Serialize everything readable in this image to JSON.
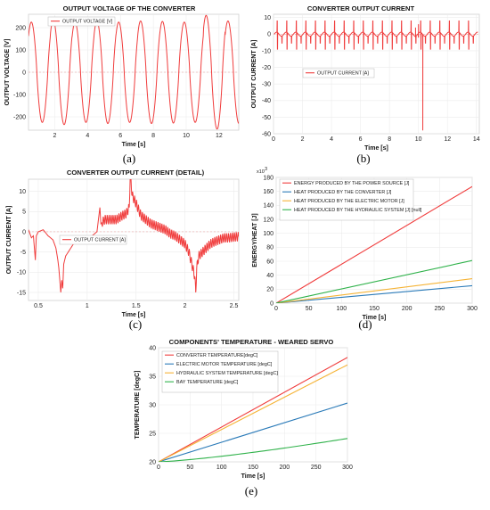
{
  "chart_data": [
    {
      "id": "a",
      "type": "line",
      "letter": "(a)",
      "title": "OUTPUT VOLTAGE OF THE CONVERTER",
      "xlabel": "Time [s]",
      "ylabel": "OUTPUT VOLTAGE [V]",
      "xlim": [
        0.4,
        13.2
      ],
      "ylim": [
        -260,
        260
      ],
      "xticks": [
        2,
        4,
        6,
        8,
        10,
        12
      ],
      "yticks": [
        -200,
        -100,
        0,
        100,
        200
      ],
      "legend_position": "top-left",
      "series": [
        {
          "name": "OUTPUT VOLTAGE [V]",
          "color": "#f03c3c",
          "waveform": {
            "kind": "sine",
            "period": 1.33,
            "amplitude": 225,
            "x0": 0.4,
            "x1": 13.2,
            "phase": 0.75
          },
          "peaks": [
            225,
            235,
            225,
            230,
            225,
            230,
            228,
            225,
            255,
            230
          ]
        }
      ]
    },
    {
      "id": "b",
      "type": "line",
      "letter": "(b)",
      "title": "CONVERTER OUTPUT CURRENT",
      "xlabel": "Time [s]",
      "ylabel": "OUTPUT CURRENT [A]",
      "xlim": [
        0,
        14.2
      ],
      "ylim": [
        -60,
        12
      ],
      "xticks": [
        0,
        2,
        4,
        6,
        8,
        10,
        12,
        14
      ],
      "yticks": [
        -60,
        -50,
        -40,
        -30,
        -20,
        -10,
        0,
        10
      ],
      "legend_position": "bottom-left",
      "series": [
        {
          "name": "OUTPUT CURRENT [A]",
          "color": "#f03c3c",
          "waveform": {
            "kind": "spiky",
            "period": 0.66,
            "baseline": 0,
            "spike_up": 8,
            "spike_down": -9,
            "x0": 0.05,
            "x1": 14.1
          },
          "events": [
            {
              "x": 10.3,
              "y": -58
            },
            {
              "x": 10.0,
              "y": 6
            },
            {
              "x": 9.8,
              "y": 4
            }
          ]
        }
      ]
    },
    {
      "id": "c",
      "type": "line",
      "letter": "(c)",
      "title": "CONVERTER OUTPUT CURRENT (DETAIL)",
      "xlabel": "Time [s]",
      "ylabel": "OUTPUT CURRENT [A]",
      "xlim": [
        0.4,
        2.55
      ],
      "ylim": [
        -17,
        13
      ],
      "xticks": [
        0.5,
        1,
        1.5,
        2,
        2.5
      ],
      "yticks": [
        -15,
        -10,
        -5,
        0,
        5,
        10
      ],
      "legend_position": "center",
      "series": [
        {
          "name": "OUTPUT CURRENT [A]",
          "color": "#f03c3c",
          "points": [
            [
              0.4,
              0.5
            ],
            [
              0.43,
              -1.5
            ],
            [
              0.45,
              -1
            ],
            [
              0.47,
              -7
            ],
            [
              0.48,
              -1
            ],
            [
              0.5,
              0
            ],
            [
              0.55,
              0.5
            ],
            [
              0.6,
              -1
            ],
            [
              0.65,
              -2
            ],
            [
              0.68,
              -4
            ],
            [
              0.7,
              -7
            ],
            [
              0.71,
              -9
            ],
            [
              0.73,
              -15
            ],
            [
              0.74,
              -12
            ],
            [
              0.75,
              -14
            ],
            [
              0.76,
              -8
            ],
            [
              0.78,
              -6
            ],
            [
              0.82,
              -4.5
            ],
            [
              0.86,
              -3
            ],
            [
              0.9,
              -2.5
            ],
            [
              0.95,
              -1.5
            ],
            [
              1.0,
              -1
            ],
            [
              1.05,
              -1
            ],
            [
              1.1,
              0
            ],
            [
              1.13,
              6
            ],
            [
              1.14,
              2
            ],
            [
              1.18,
              3
            ],
            [
              1.25,
              3
            ],
            [
              1.3,
              3
            ],
            [
              1.36,
              4
            ],
            [
              1.4,
              4.5
            ],
            [
              1.43,
              6
            ],
            [
              1.44,
              14
            ],
            [
              1.45,
              12
            ],
            [
              1.46,
              9
            ],
            [
              1.5,
              7
            ],
            [
              1.55,
              4
            ],
            [
              1.6,
              3
            ],
            [
              1.65,
              2
            ],
            [
              1.7,
              1.5
            ],
            [
              1.75,
              1
            ],
            [
              1.8,
              0.5
            ],
            [
              1.85,
              -0.5
            ],
            [
              1.9,
              -1
            ],
            [
              1.95,
              -2
            ],
            [
              2.0,
              -3
            ],
            [
              2.04,
              -5
            ],
            [
              2.07,
              -8
            ],
            [
              2.1,
              -11
            ],
            [
              2.11,
              -15
            ],
            [
              2.12,
              -9
            ],
            [
              2.14,
              -6
            ],
            [
              2.18,
              -5
            ],
            [
              2.22,
              -4
            ],
            [
              2.26,
              -3
            ],
            [
              2.3,
              -2.5
            ],
            [
              2.35,
              -2
            ],
            [
              2.4,
              -1.5
            ],
            [
              2.45,
              -1.5
            ],
            [
              2.5,
              -1.3
            ],
            [
              2.55,
              -1.2
            ]
          ],
          "ripple": {
            "amplitude": 1.2,
            "period": 0.02,
            "x0": 1.15,
            "x1": 2.55
          }
        }
      ]
    },
    {
      "id": "d",
      "type": "line",
      "letter": "(d)",
      "title": "",
      "xlabel": "Time [s]",
      "ylabel": "ENERGY/HEAT [J]",
      "y_multiplier": "x10",
      "y_multiplier_exp": "3",
      "xlim": [
        0,
        300
      ],
      "ylim": [
        0,
        180
      ],
      "xticks": [
        0,
        50,
        100,
        150,
        200,
        250,
        300
      ],
      "yticks": [
        0,
        20,
        40,
        60,
        80,
        100,
        120,
        140,
        160,
        180
      ],
      "legend_position": "top-left",
      "series": [
        {
          "name": "ENERGY PRODUCED BY THE POWER SOURCE [J]",
          "color": "#f03c3c",
          "x": [
            0,
            300
          ],
          "y": [
            0,
            167
          ]
        },
        {
          "name": "HEAT PRODUCED BY THE CONVERTER [J]",
          "color": "#2a7ab8",
          "x": [
            0,
            300
          ],
          "y": [
            0,
            25
          ]
        },
        {
          "name": "HEAT PRODUCED BY THE ELECTRIC MOTOR [J]",
          "color": "#f5b335",
          "x": [
            0,
            300
          ],
          "y": [
            0,
            35
          ]
        },
        {
          "name": "HEAT PRODUCED BY THE HYDRAULIC SYSTEM [J] [null]",
          "color": "#2fb24a",
          "x": [
            0,
            300
          ],
          "y": [
            0,
            61
          ]
        }
      ]
    },
    {
      "id": "e",
      "type": "line",
      "letter": "(e)",
      "title": "COMPONENTS' TEMPERATURE - WEARED SERVO",
      "xlabel": "Time [s]",
      "ylabel": "TEMPERATURE [degC]",
      "xlim": [
        0,
        300
      ],
      "ylim": [
        20,
        40
      ],
      "xticks": [
        0,
        50,
        100,
        150,
        200,
        250,
        300
      ],
      "yticks": [
        20,
        25,
        30,
        35,
        40
      ],
      "legend_position": "top-left",
      "series": [
        {
          "name": "CONVERTER TEMPERATURE[degC]",
          "color": "#f03c3c",
          "x": [
            0,
            300
          ],
          "y": [
            20,
            38.3
          ]
        },
        {
          "name": "ELECTRIC MOTOR TEMPERATURE [degC]",
          "color": "#2a7ab8",
          "x": [
            0,
            300
          ],
          "y": [
            20,
            30.3
          ]
        },
        {
          "name": "HYDRAULIC SYSTEM TEMPERATURE [degC]",
          "color": "#f5b335",
          "x": [
            0,
            300
          ],
          "y": [
            20,
            37.0
          ]
        },
        {
          "name": "BAY TEMPERATURE [degC]",
          "color": "#2fb24a",
          "x": [
            0,
            300
          ],
          "y": [
            20,
            24.1
          ],
          "curve": 1.3
        }
      ]
    }
  ]
}
